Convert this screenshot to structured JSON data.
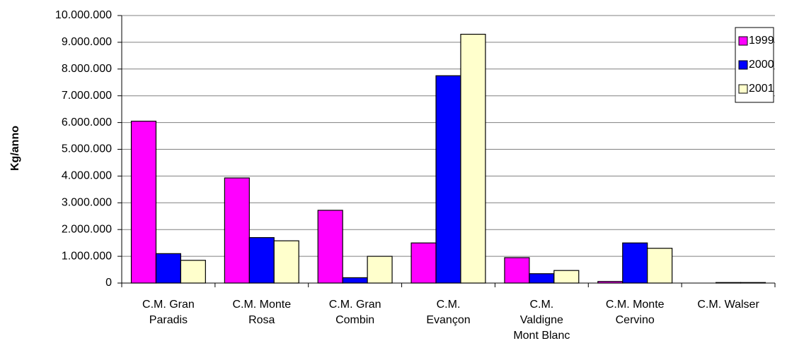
{
  "chart_data": {
    "type": "bar",
    "y_label": "Kg/anno",
    "categories": [
      "C.M. Gran\nParadis",
      "C.M. Monte\nRosa",
      "C.M. Gran\nCombin",
      "C.M.\nEvançon",
      "C.M.\nValdigne\nMont Blanc",
      "C.M. Monte\nCervino",
      "C.M. Walser"
    ],
    "series": [
      {
        "name": "1999",
        "color": "#ff00ff",
        "values": [
          6050000,
          3930000,
          2720000,
          1500000,
          950000,
          60000,
          0
        ]
      },
      {
        "name": "2000",
        "color": "#0000ff",
        "values": [
          1100000,
          1700000,
          200000,
          7750000,
          350000,
          1500000,
          20000
        ]
      },
      {
        "name": "2001",
        "color": "#ffffcc",
        "values": [
          850000,
          1580000,
          1000000,
          9300000,
          470000,
          1300000,
          20000
        ]
      }
    ],
    "ylim": [
      0,
      10000000
    ],
    "yticks": [
      0,
      {
        "value": 1000000,
        "label": "1.000.000"
      },
      {
        "value": 2000000,
        "label": "2.000.000"
      },
      {
        "value": 3000000,
        "label": "3.000.000"
      },
      {
        "value": 4000000,
        "label": "4.000.000"
      },
      {
        "value": 5000000,
        "label": "5.000.000"
      },
      {
        "value": 6000000,
        "label": "6.000.000"
      },
      {
        "value": 7000000,
        "label": "7.000.000"
      },
      {
        "value": 8000000,
        "label": "8.000.000"
      },
      {
        "value": 9000000,
        "label": "9.000.000"
      },
      {
        "value": 10000000,
        "label": "10.000.000"
      }
    ],
    "grid": true,
    "legend": "top-right"
  }
}
